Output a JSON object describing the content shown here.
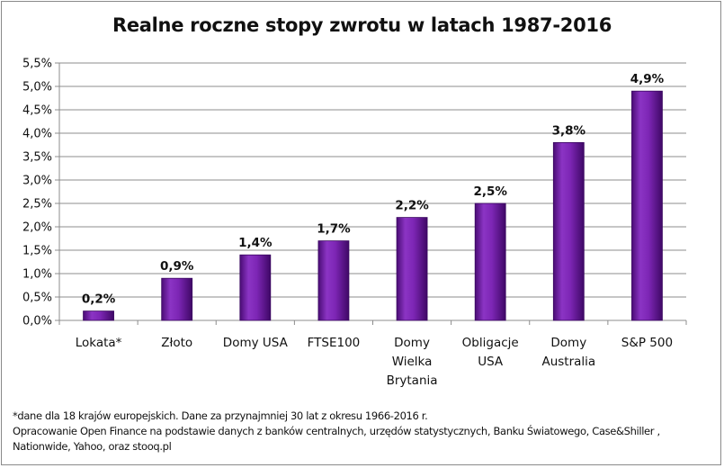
{
  "chart_data": {
    "type": "bar",
    "title": "Realne roczne stopy zwrotu w latach 1987-2016",
    "categories": [
      [
        "Lokata*"
      ],
      [
        "Złoto"
      ],
      [
        "Domy USA"
      ],
      [
        "FTSE100"
      ],
      [
        "Domy",
        "Wielka",
        "Brytania"
      ],
      [
        "Obligacje",
        "USA"
      ],
      [
        "Domy",
        "Australia"
      ],
      [
        "S&P 500"
      ]
    ],
    "values": [
      0.2,
      0.9,
      1.4,
      1.7,
      2.2,
      2.5,
      3.8,
      4.9
    ],
    "data_labels": [
      "0,2%",
      "0,9%",
      "1,4%",
      "1,7%",
      "2,2%",
      "2,5%",
      "3,8%",
      "4,9%"
    ],
    "yticks": [
      "0,0%",
      "0,5%",
      "1,0%",
      "1,5%",
      "2,0%",
      "2,5%",
      "3,0%",
      "3,5%",
      "4,0%",
      "4,5%",
      "5,0%",
      "5,5%"
    ],
    "ylim": [
      0,
      5.5
    ],
    "xlabel": "",
    "ylabel": "",
    "grid": true,
    "legend": "none",
    "bar_color": "#7a22b0"
  },
  "footnotes": {
    "line1": "*dane dla 18 krajów europejskich. Dane za przynajmniej 30 lat z okresu 1966-2016 r.",
    "line2": "Opracowanie Open Finance na podstawie danych z banków centralnych, urzędów statystycznych, Banku Światowego, Case&Shiller ,",
    "line3": "Nationwide, Yahoo, oraz stooq.pl"
  }
}
